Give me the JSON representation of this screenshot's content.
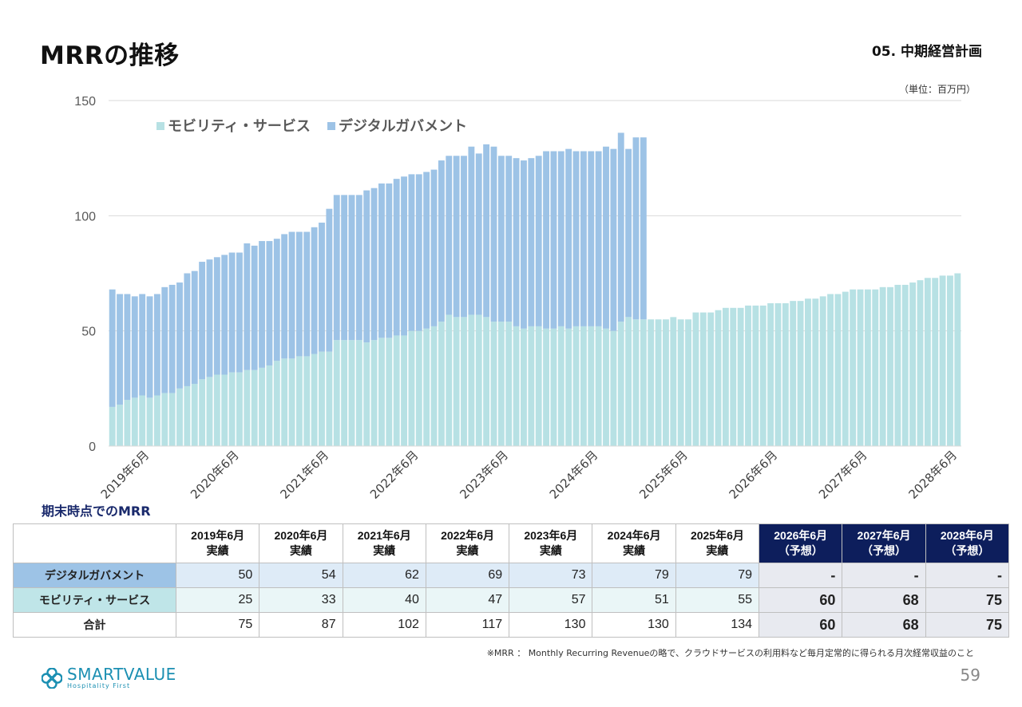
{
  "header": {
    "title": "MRRの推移",
    "section": "05. 中期経営計画",
    "unit": "（単位：百万円）"
  },
  "chart_data": {
    "type": "bar",
    "stacked": true,
    "ylim": [
      0,
      150
    ],
    "yticks": [
      0,
      50,
      100,
      150
    ],
    "grid": true,
    "legend_position": "top-left",
    "x_start": "2019年1月",
    "x_end": "2028年6月",
    "xtick_labels": [
      "2019年6月",
      "2020年6月",
      "2021年6月",
      "2022年6月",
      "2023年6月",
      "2024年6月",
      "2025年6月",
      "2026年6月",
      "2027年6月",
      "2028年6月"
    ],
    "series": [
      {
        "name": "モビリティ・サービス",
        "color": "#b7e1e4",
        "values": [
          17,
          18,
          20,
          21,
          22,
          21,
          22,
          23,
          23,
          25,
          26,
          27,
          29,
          30,
          31,
          31,
          32,
          32,
          33,
          33,
          34,
          35,
          37,
          38,
          38,
          39,
          39,
          40,
          41,
          41,
          46,
          46,
          46,
          46,
          45,
          46,
          47,
          47,
          48,
          48,
          50,
          50,
          51,
          52,
          54,
          57,
          56,
          56,
          57,
          57,
          56,
          54,
          54,
          54,
          52,
          51,
          52,
          52,
          51,
          51,
          52,
          51,
          52,
          52,
          52,
          52,
          51,
          50,
          54,
          56,
          55,
          55,
          55,
          55,
          55,
          56,
          55,
          55,
          58,
          58,
          58,
          59,
          60,
          60,
          60,
          61,
          61,
          61,
          62,
          62,
          62,
          63,
          63,
          64,
          64,
          65,
          66,
          66,
          67,
          68,
          68,
          68,
          68,
          69,
          69,
          70,
          70,
          71,
          72,
          73,
          73,
          74,
          74,
          75
        ]
      },
      {
        "name": "デジタルガバメント",
        "color": "#9dc3e6",
        "values": [
          51,
          48,
          46,
          44,
          44,
          44,
          44,
          46,
          47,
          46,
          49,
          49,
          51,
          51,
          51,
          52,
          52,
          52,
          55,
          54,
          55,
          54,
          53,
          54,
          55,
          54,
          54,
          55,
          56,
          62,
          63,
          63,
          63,
          63,
          66,
          66,
          67,
          67,
          68,
          69,
          68,
          68,
          68,
          68,
          70,
          69,
          70,
          70,
          73,
          70,
          75,
          76,
          72,
          72,
          73,
          73,
          73,
          74,
          77,
          77,
          76,
          78,
          76,
          76,
          76,
          76,
          79,
          79,
          82,
          73,
          79,
          79
        ]
      }
    ]
  },
  "table": {
    "title": "期末時点でのMRR",
    "columns": [
      {
        "year": "2019年6月",
        "kind": "実績"
      },
      {
        "year": "2020年6月",
        "kind": "実績"
      },
      {
        "year": "2021年6月",
        "kind": "実績"
      },
      {
        "year": "2022年6月",
        "kind": "実績"
      },
      {
        "year": "2023年6月",
        "kind": "実績"
      },
      {
        "year": "2024年6月",
        "kind": "実績"
      },
      {
        "year": "2025年6月",
        "kind": "実績"
      },
      {
        "year": "2026年6月",
        "kind": "（予想）"
      },
      {
        "year": "2027年6月",
        "kind": "（予想）"
      },
      {
        "year": "2028年6月",
        "kind": "（予想）"
      }
    ],
    "rows": [
      {
        "label": "デジタルガバメント",
        "values": [
          "50",
          "54",
          "62",
          "69",
          "73",
          "79",
          "79",
          "-",
          "-",
          "-"
        ]
      },
      {
        "label": "モビリティ・サービス",
        "values": [
          "25",
          "33",
          "40",
          "47",
          "57",
          "51",
          "55",
          "60",
          "68",
          "75"
        ]
      },
      {
        "label": "合計",
        "values": [
          "75",
          "87",
          "102",
          "117",
          "130",
          "130",
          "134",
          "60",
          "68",
          "75"
        ]
      }
    ]
  },
  "footnote": "※MRR ： Monthly Recurring Revenueの略で、クラウドサービスの利用料など毎月定常的に得られる月次経常収益のこと",
  "logo": {
    "name": "SMARTVALUE",
    "tagline": "Hospitality First",
    "color": "#1b8fb2"
  },
  "page_number": "59"
}
